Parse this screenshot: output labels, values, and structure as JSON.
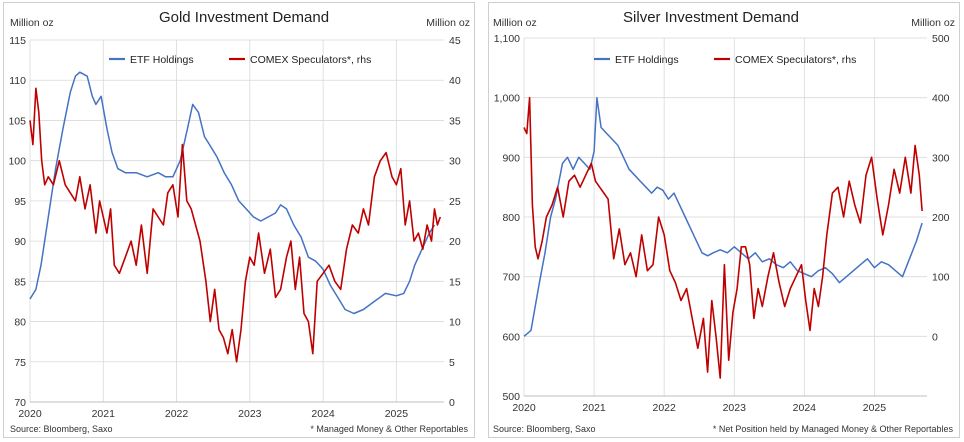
{
  "charts": {
    "gold": {
      "title": "Gold Investment Demand",
      "left_unit": "Million oz",
      "right_unit": "Million oz",
      "source": "Source: Bloomberg, Saxo",
      "footnote": "* Managed Money & Other Reportables"
    },
    "silver": {
      "title": "Silver Investment Demand",
      "left_unit": "Million oz",
      "right_unit": "Million oz",
      "source": "Source: Bloomberg, Saxo",
      "footnote": "* Net Position held by Managed Money & Other Reportables"
    }
  },
  "colors": {
    "etf": "#4472C4",
    "comex": "#C00000",
    "grid": "#d9d9d9",
    "text": "#222222"
  },
  "chart_data": [
    {
      "type": "line",
      "title": "Gold Investment Demand",
      "ylabel": "Million oz",
      "y2label": "Million oz",
      "xlim": [
        2020.0,
        2025.65
      ],
      "ylim": [
        70,
        115
      ],
      "y2lim": [
        0,
        45
      ],
      "x_ticks": [
        "2020",
        "2021",
        "2022",
        "2023",
        "2024",
        "2025"
      ],
      "y_ticks": [
        70,
        75,
        80,
        85,
        90,
        95,
        100,
        105,
        110,
        115
      ],
      "y2_ticks": [
        0,
        5,
        10,
        15,
        20,
        25,
        30,
        35,
        40,
        45
      ],
      "grid": true,
      "legend": "top-center",
      "series": [
        {
          "name": "ETF Holdings",
          "axis": "left",
          "x": [
            2020.0,
            2020.08,
            2020.15,
            2020.25,
            2020.35,
            2020.45,
            2020.55,
            2020.62,
            2020.68,
            2020.78,
            2020.85,
            2020.9,
            2020.97,
            2021.05,
            2021.12,
            2021.2,
            2021.3,
            2021.45,
            2021.6,
            2021.75,
            2021.85,
            2021.95,
            2022.05,
            2022.15,
            2022.22,
            2022.3,
            2022.38,
            2022.45,
            2022.55,
            2022.65,
            2022.75,
            2022.85,
            2022.95,
            2023.05,
            2023.15,
            2023.25,
            2023.35,
            2023.42,
            2023.5,
            2023.6,
            2023.7,
            2023.8,
            2023.9,
            2024.0,
            2024.1,
            2024.2,
            2024.3,
            2024.42,
            2024.55,
            2024.7,
            2024.85,
            2025.0,
            2025.1,
            2025.18,
            2025.25,
            2025.35,
            2025.45,
            2025.52
          ],
          "values": [
            82.8,
            84,
            87,
            93,
            99,
            104,
            108.5,
            110.5,
            111,
            110.5,
            108,
            107,
            108,
            104,
            101,
            99,
            98.5,
            98.5,
            98,
            98.5,
            98,
            98,
            100,
            104,
            107,
            106,
            103,
            102,
            100.5,
            98.5,
            97,
            95,
            94,
            93,
            92.5,
            93,
            93.5,
            94.5,
            94,
            92,
            90.5,
            88,
            87.5,
            86.5,
            84.5,
            83,
            81.5,
            81,
            81.5,
            82.5,
            83.5,
            83.2,
            83.5,
            85,
            87,
            89,
            91,
            92
          ]
        },
        {
          "name": "COMEX Speculators*, rhs",
          "axis": "right",
          "x": [
            2020.0,
            2020.04,
            2020.08,
            2020.12,
            2020.16,
            2020.2,
            2020.25,
            2020.32,
            2020.4,
            2020.48,
            2020.55,
            2020.62,
            2020.68,
            2020.75,
            2020.82,
            2020.9,
            2020.95,
            2021.0,
            2021.05,
            2021.1,
            2021.15,
            2021.22,
            2021.3,
            2021.38,
            2021.45,
            2021.52,
            2021.6,
            2021.68,
            2021.75,
            2021.82,
            2021.88,
            2021.95,
            2022.02,
            2022.08,
            2022.14,
            2022.2,
            2022.26,
            2022.32,
            2022.4,
            2022.46,
            2022.52,
            2022.58,
            2022.64,
            2022.7,
            2022.76,
            2022.82,
            2022.88,
            2022.94,
            2023.0,
            2023.06,
            2023.12,
            2023.2,
            2023.28,
            2023.35,
            2023.42,
            2023.5,
            2023.56,
            2023.62,
            2023.68,
            2023.74,
            2023.8,
            2023.86,
            2023.92,
            2024.0,
            2024.08,
            2024.16,
            2024.24,
            2024.32,
            2024.4,
            2024.48,
            2024.55,
            2024.62,
            2024.7,
            2024.78,
            2024.86,
            2024.94,
            2025.0,
            2025.06,
            2025.12,
            2025.18,
            2025.24,
            2025.3,
            2025.36,
            2025.42,
            2025.48,
            2025.52,
            2025.56,
            2025.6
          ],
          "values": [
            35,
            32,
            39,
            36,
            30,
            27,
            28,
            27,
            30,
            27,
            26,
            25,
            28,
            24,
            27,
            21,
            25,
            23,
            21,
            24,
            17,
            16,
            18,
            20,
            17,
            22,
            16,
            24,
            23,
            22,
            26,
            27,
            23,
            32,
            25,
            24,
            22,
            20,
            15,
            10,
            14,
            9,
            8,
            6,
            9,
            5,
            9,
            15,
            18,
            17,
            21,
            16,
            19,
            13,
            14,
            18,
            20,
            14,
            18,
            11,
            10,
            6,
            15,
            16,
            17,
            15,
            14,
            19,
            22,
            21,
            24,
            22,
            28,
            30,
            31,
            28,
            27,
            29,
            22,
            25,
            20,
            21,
            19,
            22,
            20,
            24,
            22,
            23
          ]
        }
      ]
    },
    {
      "type": "line",
      "title": "Silver Investment Demand",
      "ylabel": "Million oz",
      "y2label": "Million oz",
      "xlim": [
        2020.0,
        2025.75
      ],
      "ylim": [
        500,
        1100
      ],
      "y2lim": [
        -100,
        500
      ],
      "x_ticks": [
        "2020",
        "2021",
        "2022",
        "2023",
        "2024",
        "2025"
      ],
      "y_ticks": [
        500,
        600,
        700,
        800,
        900,
        1000,
        1100
      ],
      "y_tick_labels": [
        "500",
        "600",
        "700",
        "800",
        "900",
        "1,000",
        "1,100"
      ],
      "y2_ticks": [
        0,
        100,
        200,
        300,
        400,
        500
      ],
      "grid": true,
      "legend": "top-center",
      "series": [
        {
          "name": "ETF Holdings",
          "axis": "left",
          "x": [
            2020.0,
            2020.05,
            2020.1,
            2020.16,
            2020.22,
            2020.3,
            2020.38,
            2020.45,
            2020.55,
            2020.62,
            2020.7,
            2020.78,
            2020.86,
            2020.94,
            2021.0,
            2021.04,
            2021.1,
            2021.18,
            2021.26,
            2021.34,
            2021.42,
            2021.5,
            2021.58,
            2021.66,
            2021.74,
            2021.82,
            2021.9,
            2021.98,
            2022.06,
            2022.14,
            2022.22,
            2022.3,
            2022.38,
            2022.46,
            2022.54,
            2022.62,
            2022.7,
            2022.8,
            2022.9,
            2023.0,
            2023.1,
            2023.2,
            2023.3,
            2023.4,
            2023.5,
            2023.6,
            2023.7,
            2023.8,
            2023.9,
            2024.0,
            2024.1,
            2024.2,
            2024.3,
            2024.4,
            2024.5,
            2024.6,
            2024.7,
            2024.8,
            2024.9,
            2025.0,
            2025.1,
            2025.2,
            2025.3,
            2025.4,
            2025.5,
            2025.6,
            2025.68
          ],
          "values": [
            600,
            605,
            610,
            650,
            690,
            740,
            800,
            830,
            890,
            900,
            880,
            900,
            890,
            880,
            910,
            1000,
            950,
            940,
            930,
            920,
            900,
            880,
            870,
            860,
            850,
            840,
            850,
            845,
            830,
            840,
            820,
            800,
            780,
            760,
            740,
            735,
            740,
            745,
            740,
            750,
            740,
            730,
            740,
            725,
            730,
            720,
            715,
            725,
            710,
            705,
            700,
            710,
            715,
            705,
            690,
            700,
            710,
            720,
            730,
            715,
            725,
            720,
            710,
            700,
            730,
            760,
            790
          ]
        },
        {
          "name": "COMEX Speculators*, rhs",
          "axis": "right",
          "x": [
            2020.0,
            2020.04,
            2020.08,
            2020.12,
            2020.16,
            2020.2,
            2020.26,
            2020.32,
            2020.4,
            2020.48,
            2020.56,
            2020.64,
            2020.72,
            2020.8,
            2020.88,
            2020.96,
            2021.02,
            2021.08,
            2021.14,
            2021.2,
            2021.28,
            2021.36,
            2021.44,
            2021.52,
            2021.6,
            2021.68,
            2021.76,
            2021.84,
            2021.92,
            2022.0,
            2022.08,
            2022.16,
            2022.24,
            2022.32,
            2022.4,
            2022.48,
            2022.56,
            2022.62,
            2022.68,
            2022.74,
            2022.8,
            2022.86,
            2022.92,
            2022.98,
            2023.04,
            2023.1,
            2023.16,
            2023.22,
            2023.28,
            2023.34,
            2023.4,
            2023.48,
            2023.56,
            2023.64,
            2023.72,
            2023.8,
            2023.88,
            2023.96,
            2024.02,
            2024.08,
            2024.14,
            2024.2,
            2024.26,
            2024.32,
            2024.4,
            2024.48,
            2024.56,
            2024.64,
            2024.72,
            2024.8,
            2024.88,
            2024.96,
            2025.04,
            2025.12,
            2025.2,
            2025.28,
            2025.36,
            2025.44,
            2025.52,
            2025.58,
            2025.64,
            2025.68
          ],
          "values": [
            350,
            340,
            400,
            220,
            150,
            130,
            160,
            200,
            220,
            250,
            200,
            260,
            270,
            250,
            270,
            290,
            260,
            250,
            240,
            230,
            130,
            180,
            120,
            140,
            100,
            170,
            110,
            120,
            200,
            170,
            110,
            90,
            60,
            80,
            30,
            -20,
            30,
            -60,
            60,
            0,
            -70,
            120,
            -40,
            40,
            80,
            150,
            150,
            120,
            30,
            80,
            50,
            100,
            140,
            90,
            50,
            80,
            100,
            120,
            60,
            10,
            80,
            50,
            100,
            170,
            240,
            250,
            200,
            260,
            220,
            190,
            270,
            300,
            230,
            170,
            220,
            280,
            240,
            300,
            240,
            320,
            270,
            210
          ]
        }
      ]
    }
  ]
}
